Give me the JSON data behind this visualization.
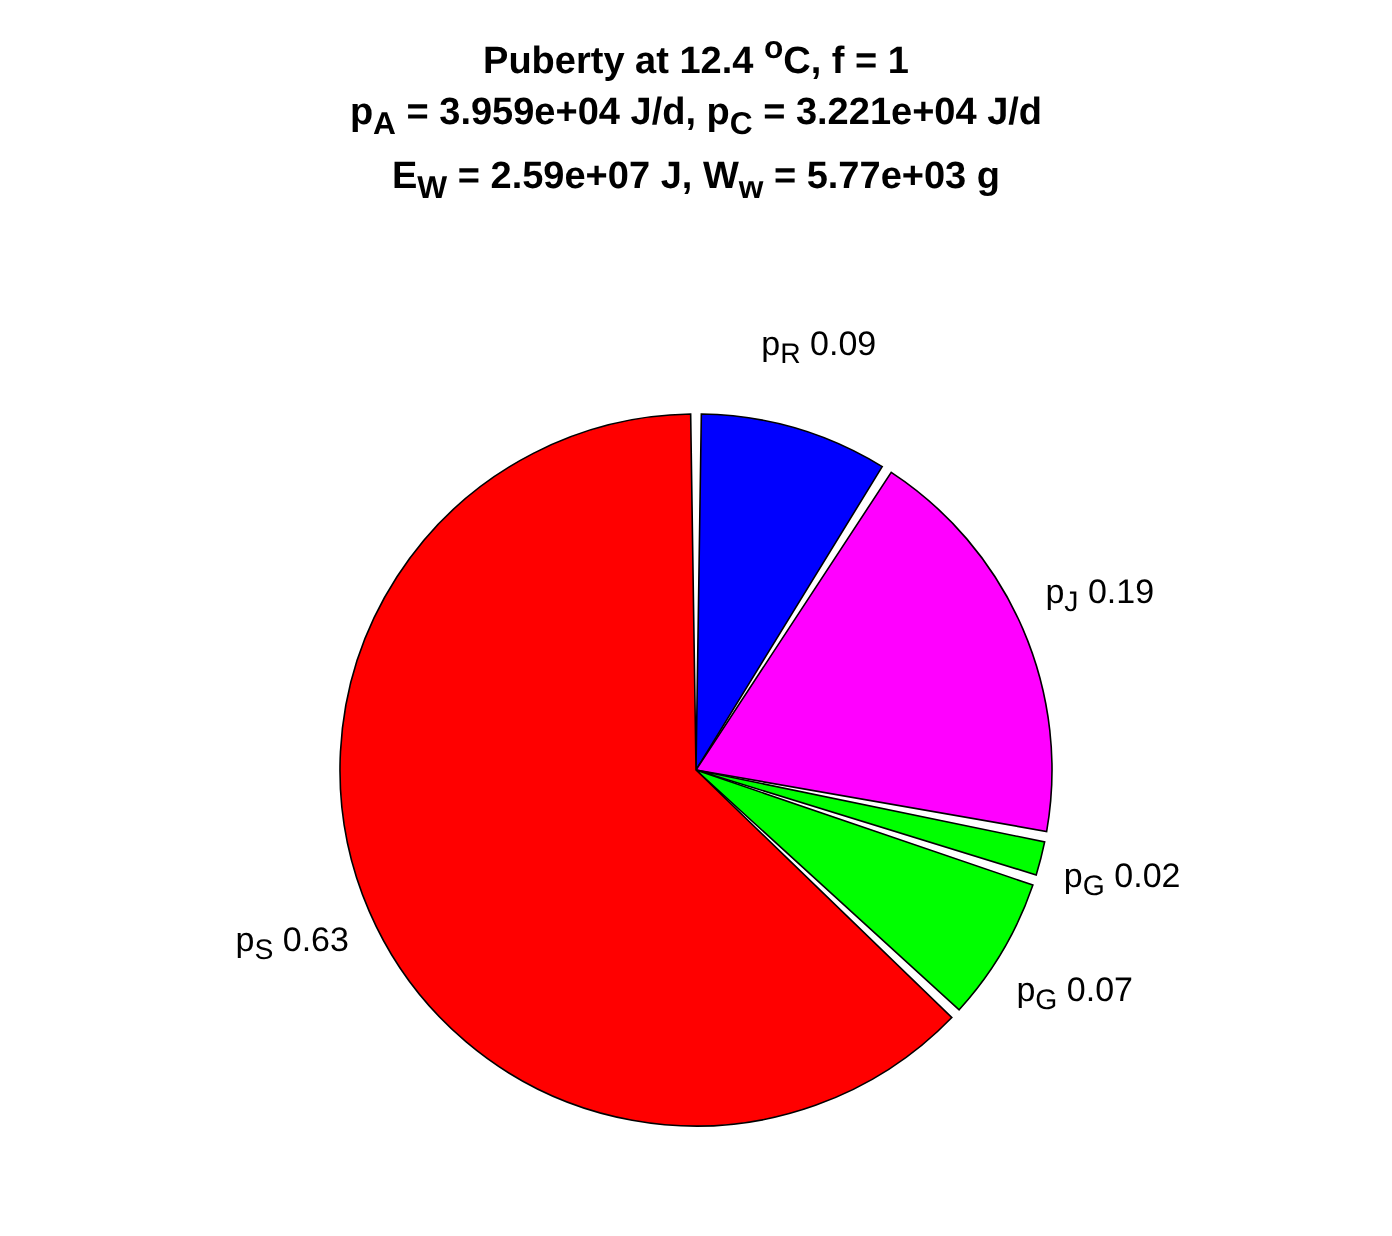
{
  "chart_data": {
    "type": "pie",
    "title": "Puberty at 12.4 $^{o}$C, f = 1\np$_{A}$ = 3.959e+04 J/d,  p$_{C}$ = 3.221e+04 J/d\nE$_{W}$ = 2.59e+07 J, W$_{w}$ = 5.77e+03 g",
    "categories": [
      "p$_{R}$",
      "p$_{J}$",
      "p$_{G}$",
      "p$_{G}$",
      "p$_{S}$"
    ],
    "values": [
      0.09,
      0.19,
      0.02,
      0.07,
      0.63
    ],
    "colors": [
      "#0000ff",
      "#ff00ff",
      "#00ff00",
      "#00ff00",
      "#ff0000"
    ],
    "data_labels": true
  }
}
